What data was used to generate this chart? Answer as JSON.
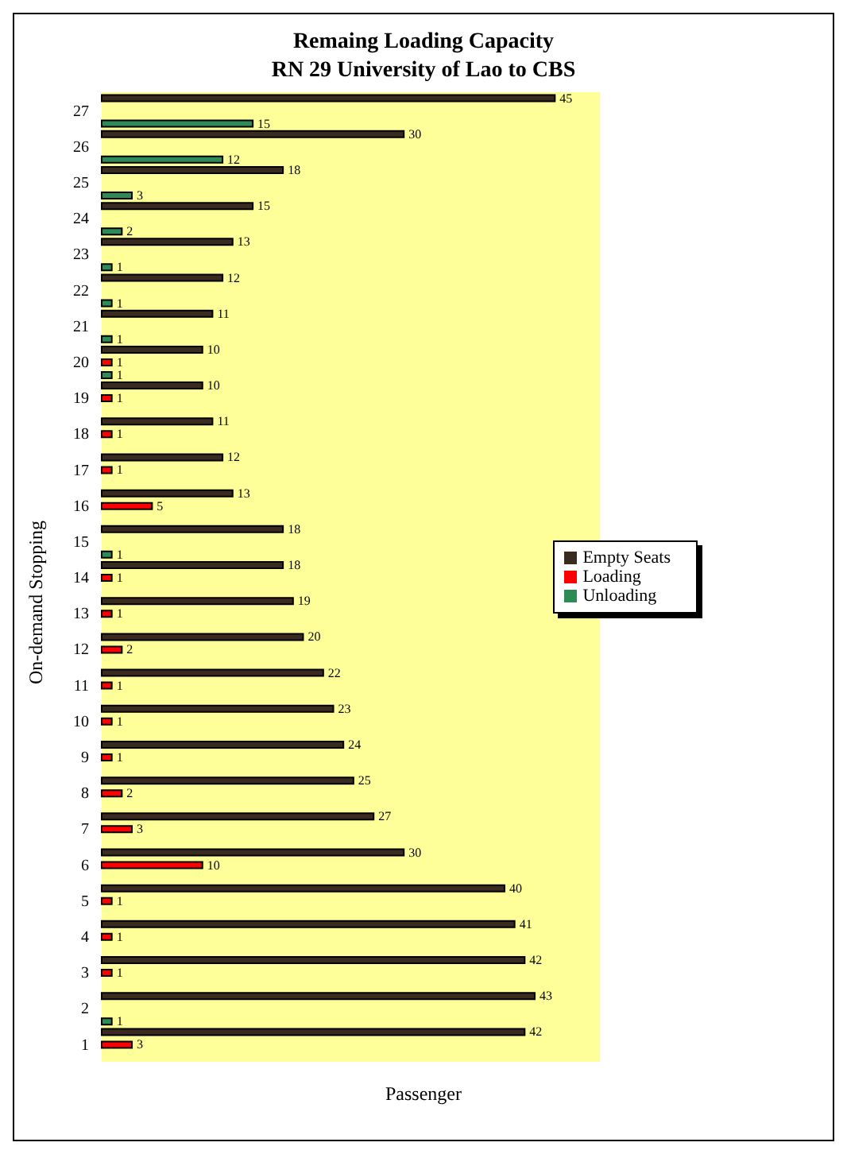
{
  "chart_data": {
    "type": "bar",
    "orientation": "horizontal",
    "title": "Remaing Loading Capacity",
    "subtitle": "RN 29  University of Lao to CBS",
    "xlabel": "Passenger",
    "ylabel": "On-demand Stopping",
    "categories": [
      "27",
      "26",
      "25",
      "24",
      "23",
      "22",
      "21",
      "20",
      "19",
      "18",
      "17",
      "16",
      "15",
      "14",
      "13",
      "12",
      "11",
      "10",
      "9",
      "8",
      "7",
      "6",
      "5",
      "4",
      "3",
      "2",
      "1"
    ],
    "series": [
      {
        "name": "Empty Seats",
        "color": "#3b2a20",
        "values": [
          45,
          30,
          18,
          15,
          13,
          12,
          11,
          10,
          10,
          11,
          12,
          13,
          18,
          18,
          19,
          20,
          22,
          23,
          24,
          25,
          27,
          30,
          40,
          41,
          42,
          43,
          42
        ],
        "value_labels": [
          "45",
          "30",
          "18",
          "15",
          "13",
          "12",
          "11",
          "10",
          "10",
          "11",
          "12",
          "13",
          "18",
          "18",
          "19",
          "20",
          "22",
          "23",
          "24",
          "25",
          "27",
          "30",
          "40",
          "41",
          "42",
          "43",
          "42"
        ]
      },
      {
        "name": "Loading",
        "color": "#ff0000",
        "values": [
          0,
          0,
          0,
          0,
          0,
          0,
          0,
          1,
          1,
          1,
          1,
          5,
          0,
          1,
          1,
          2,
          1,
          1,
          1,
          2,
          3,
          10,
          1,
          1,
          1,
          0,
          3
        ],
        "value_labels": [
          null,
          null,
          null,
          null,
          null,
          null,
          null,
          "1",
          "1",
          "1",
          "1",
          "5",
          null,
          "1",
          "1",
          "2",
          "1",
          "1",
          "1",
          "2",
          "3",
          "10",
          "1",
          "1",
          "1",
          null,
          "3"
        ]
      },
      {
        "name": "Unloading",
        "color": "#2e8b57",
        "values": [
          15,
          12,
          3,
          2,
          1,
          1,
          1,
          1,
          0,
          0,
          0,
          0,
          1,
          0,
          0,
          0,
          0,
          0,
          0,
          0,
          0,
          0,
          0,
          0,
          0,
          1,
          0
        ],
        "value_labels": [
          "15",
          "12",
          "3",
          "2",
          "1",
          "1",
          "1",
          "1",
          null,
          null,
          null,
          null,
          "1",
          null,
          null,
          null,
          null,
          null,
          null,
          null,
          null,
          null,
          null,
          null,
          null,
          "1",
          null
        ]
      }
    ],
    "legend": "right"
  }
}
